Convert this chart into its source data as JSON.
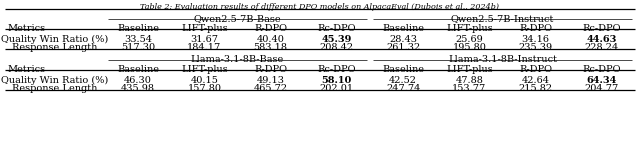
{
  "title": "Table 2: Evaluation results of different DPO models on AlpacaEval (Dubois et al., 2024b)",
  "section1_left_header": "Qwen2.5-7B-Base",
  "section1_right_header": "Qwen2.5-7B-Instruct",
  "section2_left_header": "Llama-3.1-8B-Base",
  "section2_right_header": "Llama-3.1-8B-Instruct",
  "col_headers": [
    "Baseline",
    "LIFT-plus",
    "R-DPO",
    "Rc-DPO"
  ],
  "row_labels": [
    "Quality Win Ratio (%)",
    "Response Length"
  ],
  "section1_left_data": [
    [
      "33.54",
      "31.67",
      "40.40",
      "45.39"
    ],
    [
      "517.30",
      "184.17",
      "583.18",
      "208.42"
    ]
  ],
  "section1_right_data": [
    [
      "28.43",
      "25.69",
      "34.16",
      "44.63"
    ],
    [
      "261.32",
      "195.80",
      "235.39",
      "228.24"
    ]
  ],
  "section2_left_data": [
    [
      "46.30",
      "40.15",
      "49.13",
      "58.10"
    ],
    [
      "435.98",
      "157.80",
      "465.72",
      "202.01"
    ]
  ],
  "section2_right_data": [
    [
      "42.52",
      "47.88",
      "42.64",
      "64.34"
    ],
    [
      "247.74",
      "153.77",
      "215.82",
      "204.77"
    ]
  ],
  "bold_col": 3,
  "background_color": "#ffffff",
  "font_size": 7.0,
  "title_font_size": 5.8
}
